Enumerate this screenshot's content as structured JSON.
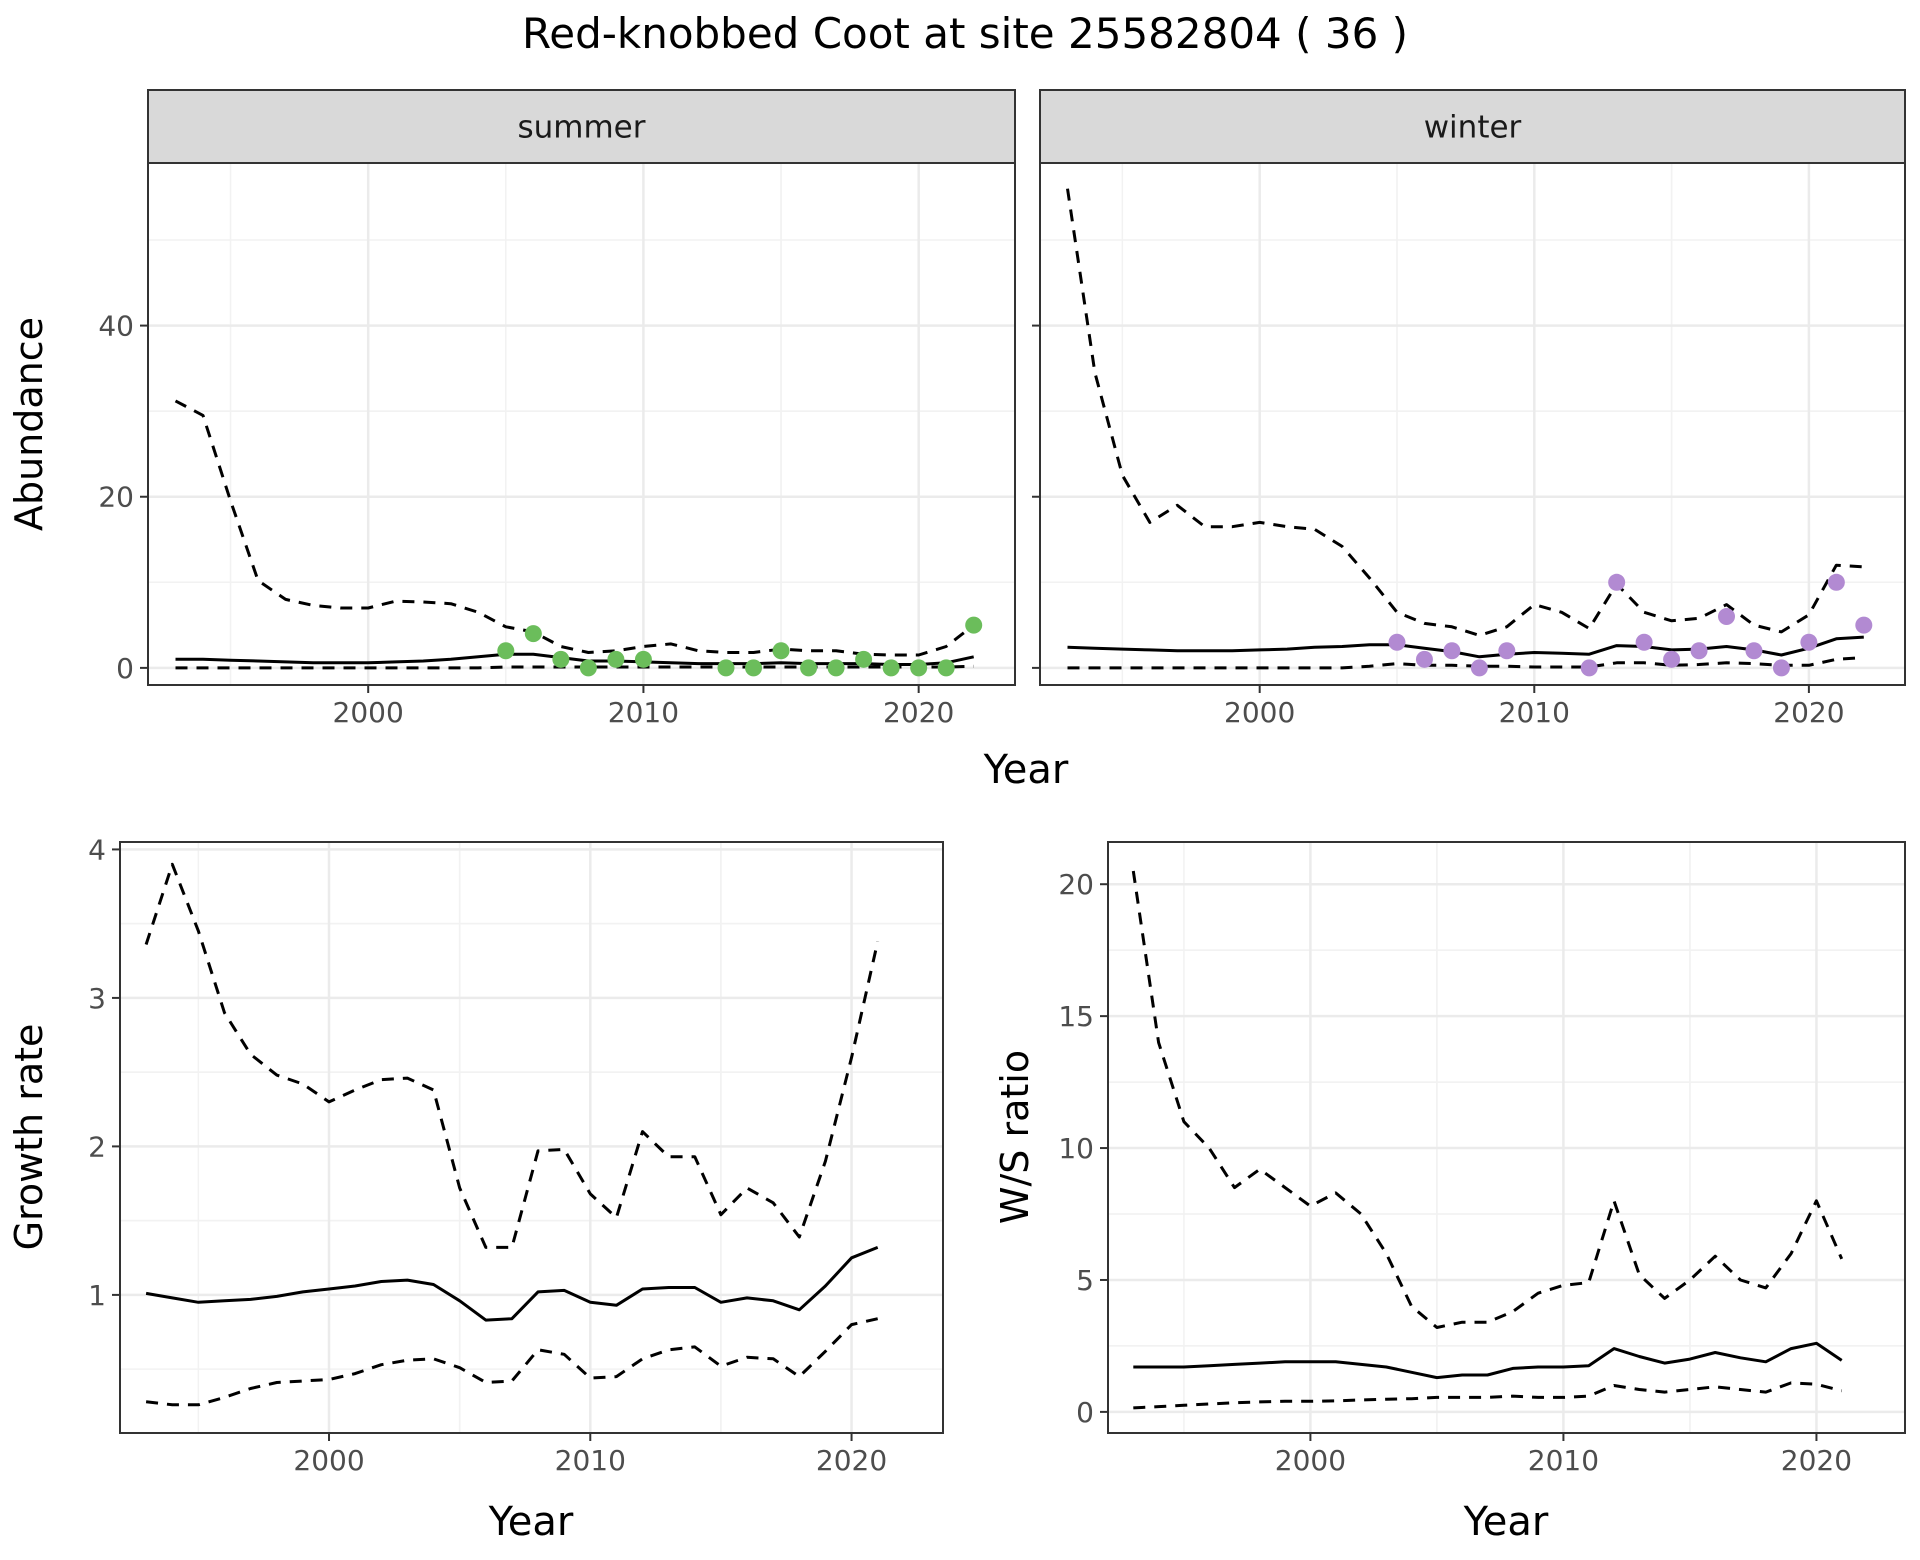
{
  "title": "Red-knobbed Coot at site 25582804 ( 36 )",
  "chart_data": [
    {
      "type": "line",
      "panel": "summer",
      "facet_label": "summer",
      "xlabel": "",
      "ylabel": "Abundance",
      "xlim": [
        1992,
        2023.5
      ],
      "ylim": [
        -2,
        59
      ],
      "xticks": [
        2000,
        2010,
        2020
      ],
      "yticks": [
        0,
        20,
        40
      ],
      "grid": true,
      "point_color": "#6bbd5b",
      "series": [
        {
          "style": "solid",
          "x": [
            1993,
            1994,
            1995,
            1996,
            1997,
            1998,
            1999,
            2000,
            2001,
            2002,
            2003,
            2004,
            2005,
            2006,
            2007,
            2008,
            2009,
            2010,
            2011,
            2012,
            2013,
            2014,
            2015,
            2016,
            2017,
            2018,
            2019,
            2020,
            2021,
            2022
          ],
          "y": [
            1.0,
            1.0,
            0.9,
            0.8,
            0.7,
            0.6,
            0.6,
            0.6,
            0.7,
            0.8,
            1.0,
            1.3,
            1.6,
            1.6,
            1.2,
            0.8,
            0.8,
            0.7,
            0.6,
            0.5,
            0.5,
            0.5,
            0.6,
            0.5,
            0.5,
            0.5,
            0.4,
            0.4,
            0.6,
            1.3
          ]
        },
        {
          "style": "dashed",
          "x": [
            1993,
            1994,
            1995,
            1996,
            1997,
            1998,
            1999,
            2000,
            2001,
            2002,
            2003,
            2004,
            2005,
            2006,
            2007,
            2008,
            2009,
            2010,
            2011,
            2012,
            2013,
            2014,
            2015,
            2016,
            2017,
            2018,
            2019,
            2020,
            2021,
            2022
          ],
          "y": [
            31.2,
            29.5,
            19.5,
            10.2,
            8.0,
            7.3,
            7.0,
            7.0,
            7.8,
            7.7,
            7.5,
            6.5,
            4.8,
            4.2,
            2.5,
            1.8,
            2.0,
            2.5,
            2.8,
            2.0,
            1.8,
            1.8,
            2.2,
            2.0,
            2.0,
            1.6,
            1.5,
            1.5,
            2.5,
            5.0
          ]
        },
        {
          "style": "dashed",
          "x": [
            1993,
            1994,
            1995,
            1996,
            1997,
            1998,
            1999,
            2000,
            2001,
            2002,
            2003,
            2004,
            2005,
            2006,
            2007,
            2008,
            2009,
            2010,
            2011,
            2012,
            2013,
            2014,
            2015,
            2016,
            2017,
            2018,
            2019,
            2020,
            2021,
            2022
          ],
          "y": [
            0.0,
            0.0,
            0.0,
            0.0,
            0.0,
            0.0,
            0.0,
            0.0,
            0.0,
            0.0,
            0.0,
            0.0,
            0.1,
            0.1,
            0.1,
            0.1,
            0.1,
            0.1,
            0.1,
            0.1,
            0.1,
            0.1,
            0.1,
            0.1,
            0.1,
            0.1,
            0.1,
            0.1,
            0.1,
            0.2
          ]
        }
      ],
      "points": {
        "x": [
          2005,
          2006,
          2007,
          2008,
          2009,
          2010,
          2013,
          2014,
          2015,
          2016,
          2017,
          2018,
          2019,
          2020,
          2021,
          2022
        ],
        "y": [
          2,
          4,
          1,
          0,
          1,
          1,
          0,
          0,
          2,
          0,
          0,
          1,
          0,
          0,
          0,
          5
        ]
      }
    },
    {
      "type": "line",
      "panel": "winter",
      "facet_label": "winter",
      "xlabel": "",
      "ylabel": "",
      "xlim": [
        1992,
        2023.5
      ],
      "ylim": [
        -2,
        59
      ],
      "xticks": [
        2000,
        2010,
        2020
      ],
      "yticks": [
        0,
        20,
        40
      ],
      "grid": true,
      "point_color": "#b28ad2",
      "series": [
        {
          "style": "solid",
          "x": [
            1993,
            1994,
            1995,
            1996,
            1997,
            1998,
            1999,
            2000,
            2001,
            2002,
            2003,
            2004,
            2005,
            2006,
            2007,
            2008,
            2009,
            2010,
            2011,
            2012,
            2013,
            2014,
            2015,
            2016,
            2017,
            2018,
            2019,
            2020,
            2021,
            2022
          ],
          "y": [
            2.4,
            2.3,
            2.2,
            2.1,
            2.0,
            2.0,
            2.0,
            2.1,
            2.2,
            2.4,
            2.5,
            2.7,
            2.7,
            2.3,
            1.9,
            1.3,
            1.6,
            1.8,
            1.7,
            1.6,
            2.6,
            2.5,
            2.1,
            2.2,
            2.5,
            2.1,
            1.5,
            2.3,
            3.4,
            3.6
          ]
        },
        {
          "style": "dashed",
          "x": [
            1993,
            1994,
            1995,
            1996,
            1997,
            1998,
            1999,
            2000,
            2001,
            2002,
            2003,
            2004,
            2005,
            2006,
            2007,
            2008,
            2009,
            2010,
            2011,
            2012,
            2013,
            2014,
            2015,
            2016,
            2017,
            2018,
            2019,
            2020,
            2021,
            2022
          ],
          "y": [
            56.0,
            34.5,
            22.5,
            17.0,
            19.0,
            16.5,
            16.5,
            17.0,
            16.5,
            16.2,
            14.2,
            10.5,
            6.5,
            5.2,
            4.8,
            3.8,
            4.8,
            7.4,
            6.5,
            4.6,
            9.8,
            6.5,
            5.5,
            5.8,
            7.4,
            5.0,
            4.2,
            6.2,
            12.0,
            11.8
          ]
        },
        {
          "style": "dashed",
          "x": [
            1993,
            1994,
            1995,
            1996,
            1997,
            1998,
            1999,
            2000,
            2001,
            2002,
            2003,
            2004,
            2005,
            2006,
            2007,
            2008,
            2009,
            2010,
            2011,
            2012,
            2013,
            2014,
            2015,
            2016,
            2017,
            2018,
            2019,
            2020,
            2021,
            2022
          ],
          "y": [
            0.0,
            0.0,
            0.0,
            0.0,
            0.0,
            0.0,
            0.0,
            0.0,
            0.0,
            0.0,
            0.0,
            0.2,
            0.5,
            0.3,
            0.3,
            0.2,
            0.2,
            0.1,
            0.1,
            0.1,
            0.6,
            0.6,
            0.3,
            0.4,
            0.6,
            0.5,
            0.3,
            0.3,
            1.0,
            1.2
          ]
        }
      ],
      "points": {
        "x": [
          2005,
          2006,
          2007,
          2008,
          2009,
          2012,
          2013,
          2014,
          2015,
          2016,
          2017,
          2018,
          2019,
          2020,
          2021,
          2022
        ],
        "y": [
          3,
          1,
          2,
          0,
          2,
          0,
          10,
          3,
          1,
          2,
          6,
          2,
          0,
          3,
          10,
          5
        ]
      }
    },
    {
      "type": "line",
      "panel": "growth",
      "xlabel": "Year",
      "ylabel": "Growth rate",
      "xlim": [
        1992,
        2023.5
      ],
      "ylim": [
        0.07,
        4.05
      ],
      "xticks": [
        2000,
        2010,
        2020
      ],
      "yticks": [
        1,
        2,
        3,
        4
      ],
      "grid": true,
      "series": [
        {
          "style": "solid",
          "x": [
            1993,
            1994,
            1995,
            1996,
            1997,
            1998,
            1999,
            2000,
            2001,
            2002,
            2003,
            2004,
            2005,
            2006,
            2007,
            2008,
            2009,
            2010,
            2011,
            2012,
            2013,
            2014,
            2015,
            2016,
            2017,
            2018,
            2019,
            2020,
            2021
          ],
          "y": [
            1.01,
            0.98,
            0.95,
            0.96,
            0.97,
            0.99,
            1.02,
            1.04,
            1.06,
            1.09,
            1.1,
            1.07,
            0.96,
            0.83,
            0.84,
            1.02,
            1.03,
            0.95,
            0.93,
            1.04,
            1.05,
            1.05,
            0.95,
            0.98,
            0.96,
            0.9,
            1.06,
            1.25,
            1.32
          ]
        },
        {
          "style": "dashed",
          "x": [
            1993,
            1994,
            1995,
            1996,
            1997,
            1998,
            1999,
            2000,
            2001,
            2002,
            2003,
            2004,
            2005,
            2006,
            2007,
            2008,
            2009,
            2010,
            2011,
            2012,
            2013,
            2014,
            2015,
            2016,
            2017,
            2018,
            2019,
            2020,
            2021
          ],
          "y": [
            3.36,
            3.9,
            3.45,
            2.9,
            2.62,
            2.48,
            2.42,
            2.3,
            2.38,
            2.45,
            2.46,
            2.38,
            1.72,
            1.32,
            1.32,
            1.97,
            1.98,
            1.68,
            1.52,
            2.1,
            1.93,
            1.93,
            1.54,
            1.72,
            1.62,
            1.39,
            1.9,
            2.6,
            3.38
          ]
        },
        {
          "style": "dashed",
          "x": [
            1993,
            1994,
            1995,
            1996,
            1997,
            1998,
            1999,
            2000,
            2001,
            2002,
            2003,
            2004,
            2005,
            2006,
            2007,
            2008,
            2009,
            2010,
            2011,
            2012,
            2013,
            2014,
            2015,
            2016,
            2017,
            2018,
            2019,
            2020,
            2021
          ],
          "y": [
            0.28,
            0.26,
            0.26,
            0.31,
            0.37,
            0.41,
            0.42,
            0.43,
            0.47,
            0.53,
            0.56,
            0.57,
            0.51,
            0.41,
            0.42,
            0.63,
            0.6,
            0.44,
            0.45,
            0.57,
            0.63,
            0.65,
            0.52,
            0.58,
            0.57,
            0.45,
            0.62,
            0.8,
            0.84
          ]
        }
      ]
    },
    {
      "type": "line",
      "panel": "ratio",
      "xlabel": "Year",
      "ylabel": "W/S ratio",
      "xlim": [
        1992,
        2023.5
      ],
      "ylim": [
        -0.8,
        21.6
      ],
      "xticks": [
        2000,
        2010,
        2020
      ],
      "yticks": [
        0,
        5,
        10,
        15,
        20
      ],
      "grid": true,
      "series": [
        {
          "style": "solid",
          "x": [
            1993,
            1994,
            1995,
            1996,
            1997,
            1998,
            1999,
            2000,
            2001,
            2002,
            2003,
            2004,
            2005,
            2006,
            2007,
            2008,
            2009,
            2010,
            2011,
            2012,
            2013,
            2014,
            2015,
            2016,
            2017,
            2018,
            2019,
            2020,
            2021
          ],
          "y": [
            1.7,
            1.7,
            1.7,
            1.75,
            1.8,
            1.85,
            1.9,
            1.9,
            1.9,
            1.8,
            1.7,
            1.5,
            1.3,
            1.4,
            1.4,
            1.65,
            1.7,
            1.7,
            1.75,
            2.4,
            2.1,
            1.85,
            2.0,
            2.25,
            2.05,
            1.9,
            2.4,
            2.6,
            1.95
          ]
        },
        {
          "style": "dashed",
          "x": [
            1993,
            1994,
            1995,
            1996,
            1997,
            1998,
            1999,
            2000,
            2001,
            2002,
            2003,
            2004,
            2005,
            2006,
            2007,
            2008,
            2009,
            2010,
            2011,
            2012,
            2013,
            2014,
            2015,
            2016,
            2017,
            2018,
            2019,
            2020,
            2021
          ],
          "y": [
            20.5,
            14.0,
            11.0,
            10.0,
            8.5,
            9.2,
            8.5,
            7.8,
            8.3,
            7.5,
            6.0,
            4.0,
            3.2,
            3.4,
            3.4,
            3.8,
            4.5,
            4.8,
            4.9,
            8.0,
            5.2,
            4.3,
            5.0,
            5.9,
            5.0,
            4.7,
            6.0,
            8.0,
            5.8
          ]
        },
        {
          "style": "dashed",
          "x": [
            1993,
            1994,
            1995,
            1996,
            1997,
            1998,
            1999,
            2000,
            2001,
            2002,
            2003,
            2004,
            2005,
            2006,
            2007,
            2008,
            2009,
            2010,
            2011,
            2012,
            2013,
            2014,
            2015,
            2016,
            2017,
            2018,
            2019,
            2020,
            2021
          ],
          "y": [
            0.15,
            0.2,
            0.25,
            0.3,
            0.35,
            0.38,
            0.4,
            0.4,
            0.42,
            0.45,
            0.48,
            0.5,
            0.55,
            0.55,
            0.55,
            0.6,
            0.55,
            0.55,
            0.6,
            1.0,
            0.85,
            0.75,
            0.85,
            0.95,
            0.85,
            0.75,
            1.1,
            1.05,
            0.8
          ]
        }
      ]
    }
  ]
}
